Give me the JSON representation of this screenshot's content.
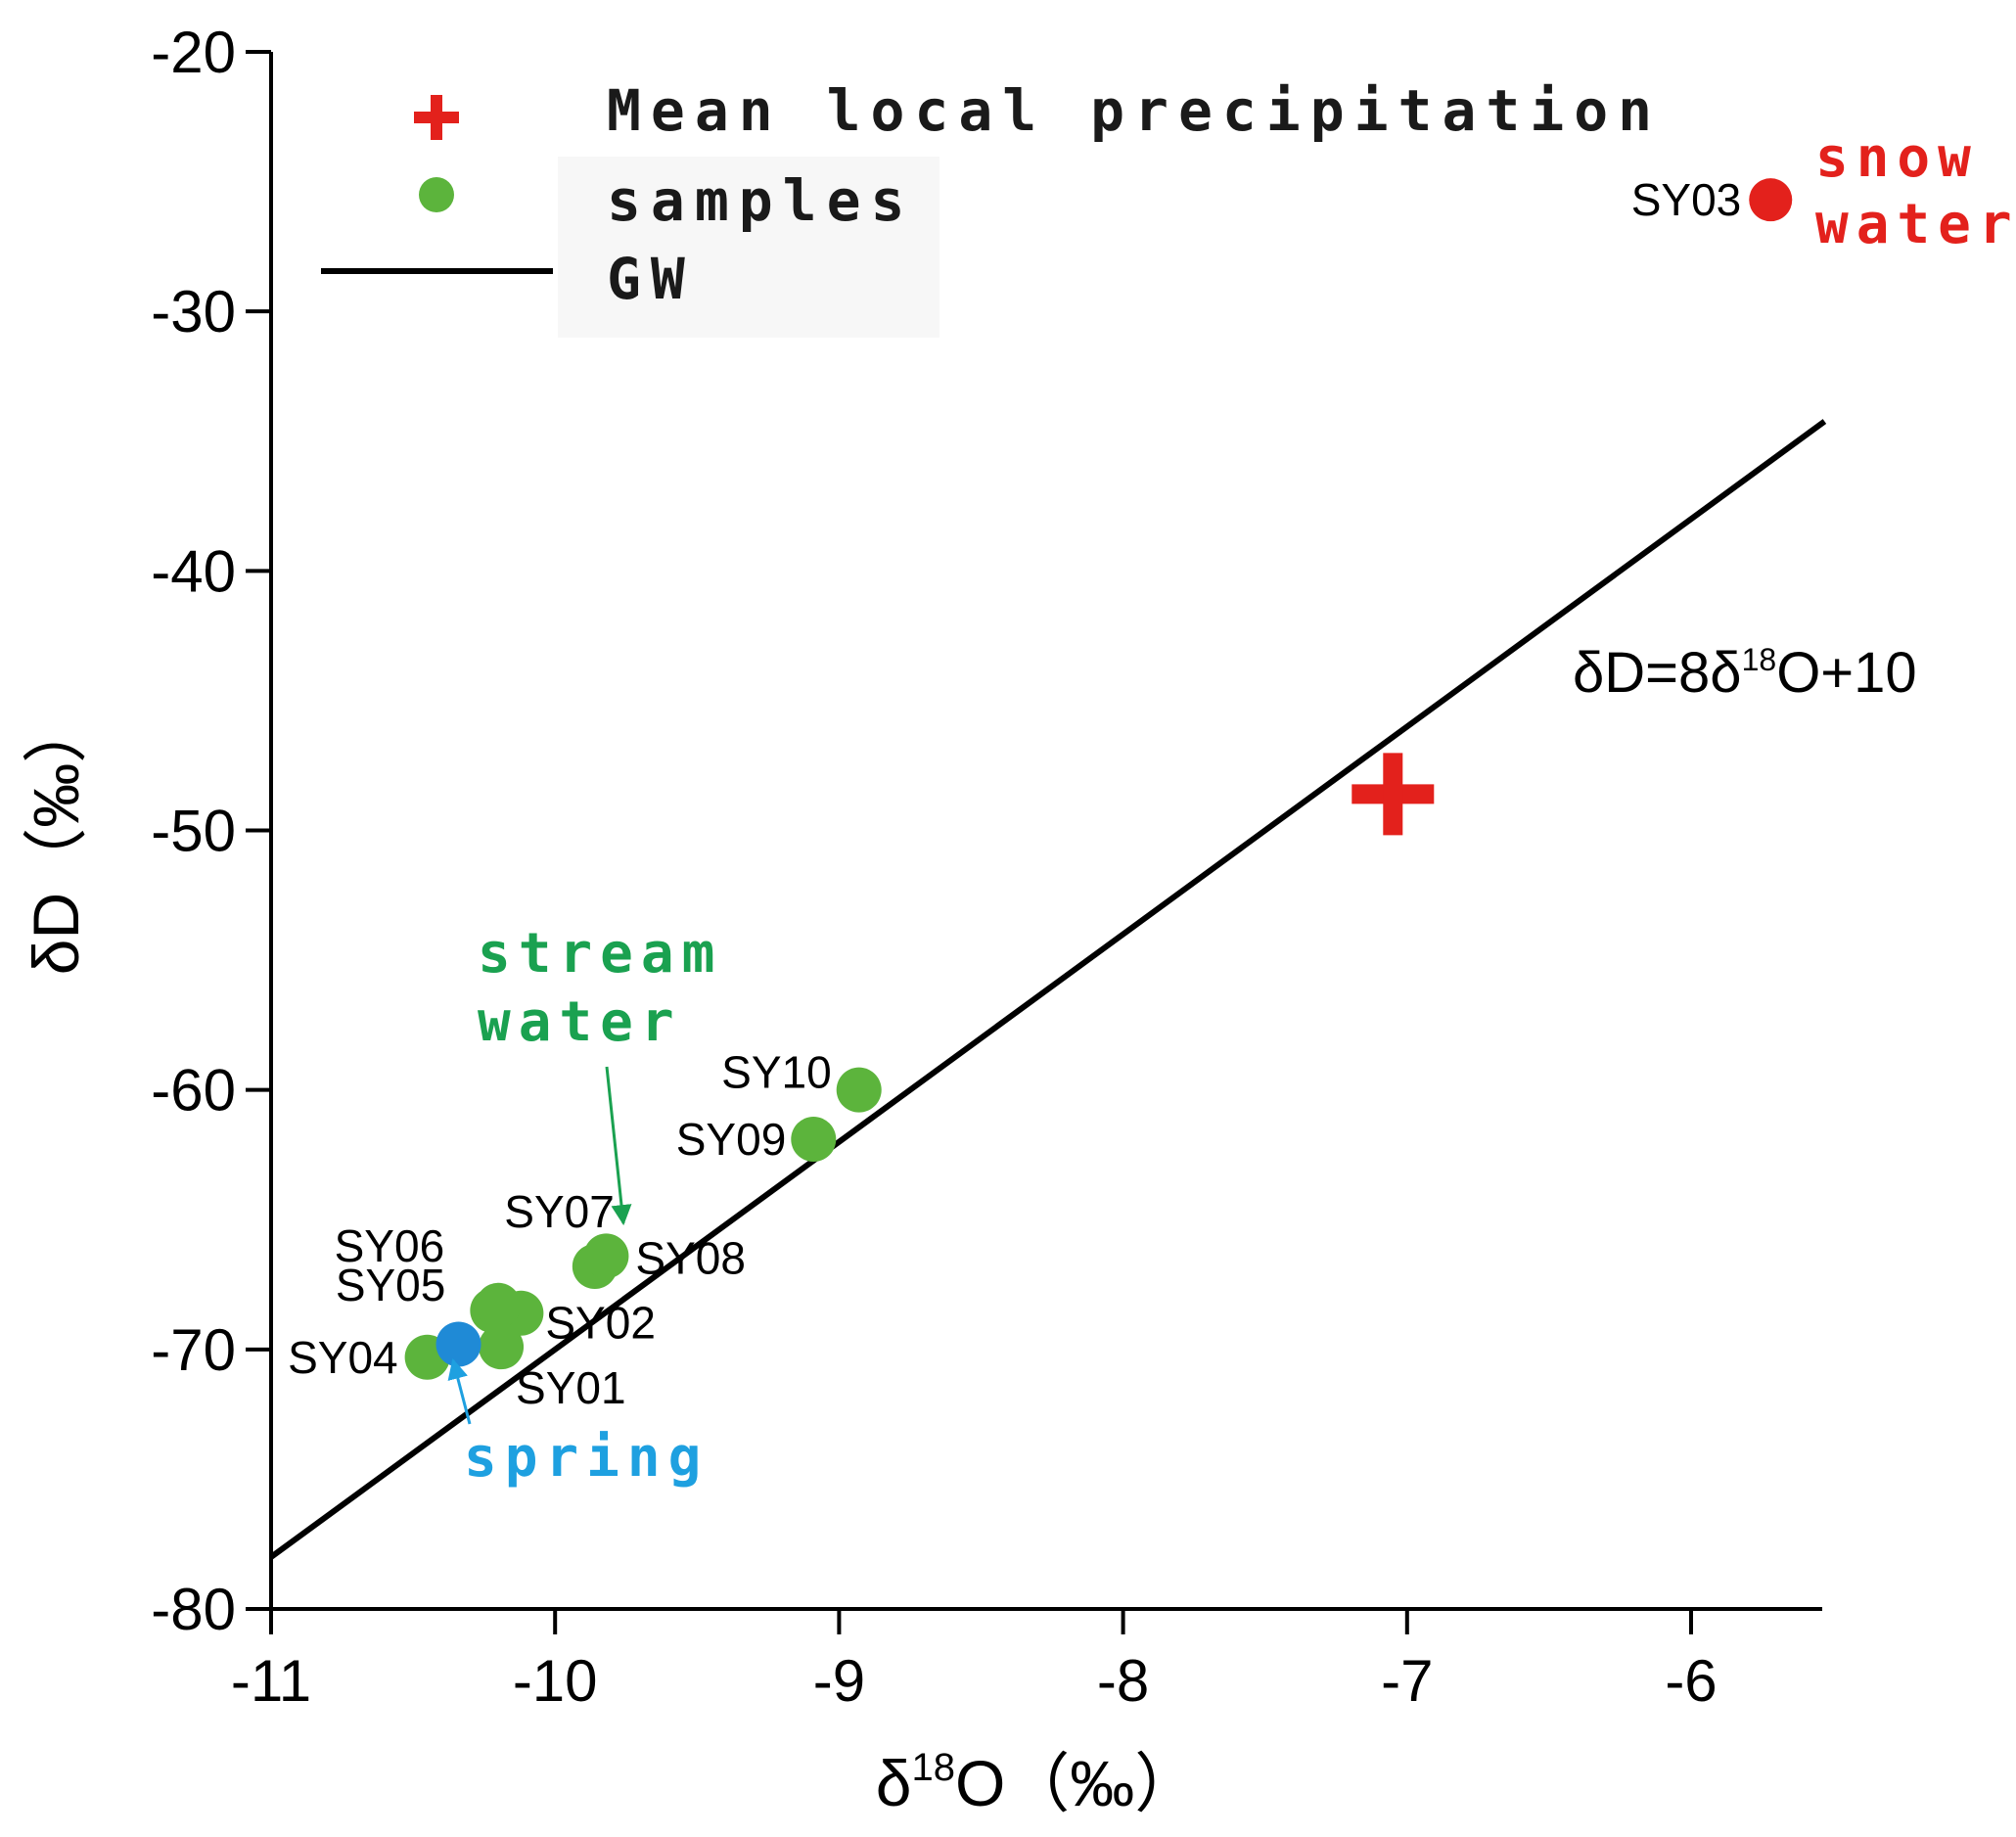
{
  "chart_data": {
    "type": "scatter",
    "title": "",
    "xlabel": "δ18O（‰）",
    "xlabel_parts": {
      "prefix": "δ",
      "sup": "18",
      "suffix": "O（‰）"
    },
    "ylabel": "δD（‰）",
    "xlim": [
      -11,
      -5.5
    ],
    "ylim": [
      -80,
      -20
    ],
    "xticks": [
      -11,
      -10,
      -9,
      -8,
      -7,
      -6
    ],
    "yticks": [
      -20,
      -30,
      -40,
      -50,
      -60,
      -70,
      -80
    ],
    "xtick_labels": [
      "-11",
      "-10",
      "-9",
      "-8",
      "-7",
      "-6"
    ],
    "ytick_labels": [
      "-20",
      "-30",
      "-40",
      "-50",
      "-60",
      "-70",
      "-80"
    ],
    "colors": {
      "samples": "#5cb43c",
      "spring": "#1f8ad6",
      "snow": "#e3211c",
      "precip": "#e3211c",
      "stream_label": "#1aa150",
      "spring_label": "#1ea0e0",
      "snow_label": "#e3211c",
      "line": "#000000"
    },
    "line": {
      "name": "GW",
      "slope": 8,
      "intercept": 10,
      "x_range": [
        -11,
        -5.53
      ],
      "equation_parts": {
        "prefix": "δD=8δ",
        "sup": "18",
        "suffix": "O+10"
      }
    },
    "precipitation_mean": {
      "name": "Mean local precipitation",
      "x": -7.05,
      "y": -48.6
    },
    "samples": [
      {
        "id": "SY01",
        "x": -10.19,
        "y": -69.9
      },
      {
        "id": "SY02",
        "x": -10.12,
        "y": -68.6
      },
      {
        "id": "SY04",
        "x": -10.45,
        "y": -70.3
      },
      {
        "id": "SY05",
        "x": -10.22,
        "y": -68.5
      },
      {
        "id": "SY06",
        "x": -10.2,
        "y": -68.3
      },
      {
        "id": "SY07",
        "x": -9.86,
        "y": -66.8
      },
      {
        "id": "SY08",
        "x": -9.82,
        "y": -66.4
      },
      {
        "id": "SY09",
        "x": -9.09,
        "y": -61.9
      },
      {
        "id": "SY10",
        "x": -8.93,
        "y": -60.0
      }
    ],
    "spring_sample": {
      "id": "",
      "x": -10.34,
      "y": -69.8
    },
    "snow_sample": {
      "id": "SY03",
      "x": -5.72,
      "y": -25.7
    },
    "legend": {
      "position": "top-left",
      "entries": [
        "Mean local precipitation",
        "samples",
        "GW"
      ]
    },
    "annotations": {
      "stream_water": [
        "stream",
        "water"
      ],
      "spring": "spring",
      "snow_water": [
        "snow",
        "water"
      ]
    }
  }
}
